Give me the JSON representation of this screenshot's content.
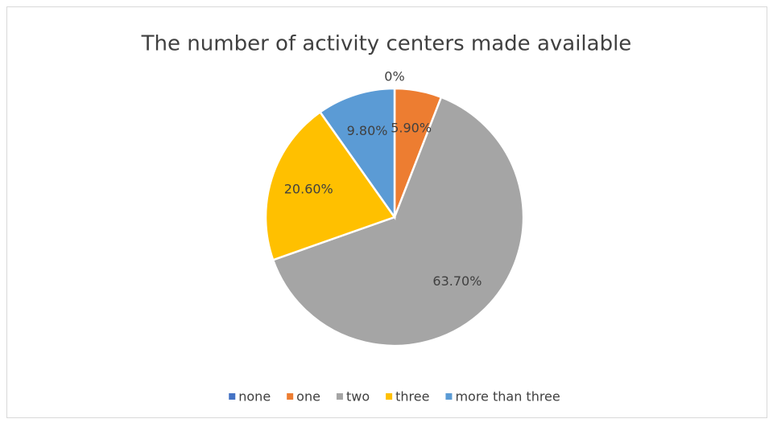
{
  "chart_data": {
    "type": "pie",
    "title": "The number of activity centers made available",
    "categories": [
      "none",
      "one",
      "two",
      "three",
      "more than three"
    ],
    "values": [
      0,
      5.9,
      63.7,
      20.6,
      9.8
    ],
    "value_labels": [
      "0%",
      "5.90%",
      "63.70%",
      "20.60%",
      "9.80%"
    ],
    "colors": [
      "#4472c4",
      "#ed7d31",
      "#a5a5a5",
      "#ffc000",
      "#5b9bd5"
    ],
    "legend": "bottom"
  }
}
